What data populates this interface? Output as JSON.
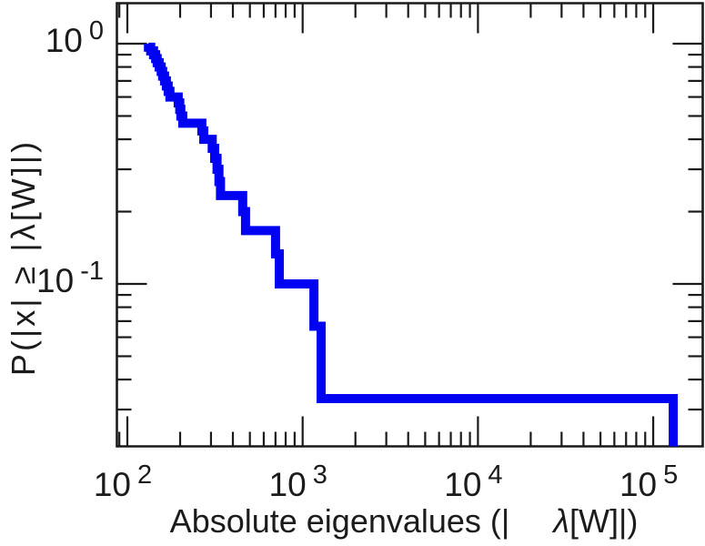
{
  "figure": {
    "background_color": "#ffffff",
    "axis_color": "#1a1a1a",
    "text_color": "#1b1b1b"
  },
  "chart_data": {
    "type": "line",
    "subtype": "empirical_ccdf_step",
    "title": "",
    "xlabel_part1": "Absolute eigenvalues (|",
    "xlabel_lambda": "λ",
    "xlabel_part2": "[W]|)",
    "ylabel": "P(|x| ≥ |λ[W]|)",
    "x_scale": "log",
    "y_scale": "log",
    "xlim": [
      87,
      192000
    ],
    "ylim": [
      0.0212,
      1.48
    ],
    "grid": false,
    "legend": null,
    "line_color": "#0202f2",
    "line_width": 10,
    "n_eigenvalues": 30,
    "tail_probability": 0.0333,
    "x_ticks": [
      {
        "base": "10",
        "exp": "2",
        "value": 100
      },
      {
        "base": "10",
        "exp": "3",
        "value": 1000
      },
      {
        "base": "10",
        "exp": "4",
        "value": 10000
      },
      {
        "base": "10",
        "exp": "5",
        "value": 100000
      }
    ],
    "y_ticks": [
      {
        "base": "10",
        "exp": "0",
        "value": 1
      },
      {
        "base": "10",
        "exp": "-1",
        "value": 0.1
      }
    ],
    "eigenvalues": [
      132,
      136,
      141,
      145,
      148,
      152,
      156,
      159,
      163,
      167,
      171,
      175,
      195,
      199,
      202,
      207,
      266,
      273,
      305,
      315,
      325,
      333,
      340,
      455,
      472,
      700,
      736,
      1160,
      1275,
      130000
    ]
  }
}
